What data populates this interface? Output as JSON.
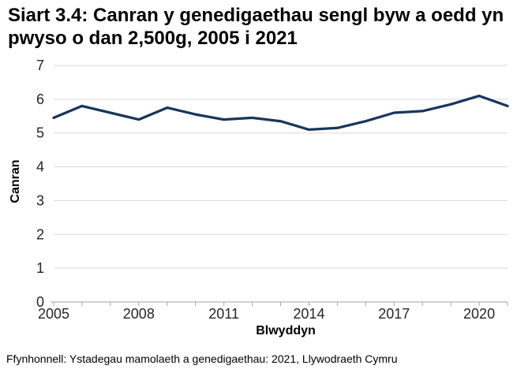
{
  "chart": {
    "title": "Siart 3.4: Canran y genedigaethau sengl byw a oedd yn pwyso o dan 2,500g, 2005 i 2021",
    "ylabel": "Canran",
    "xlabel": "Blwyddyn",
    "source": "Ffynhonnell: Ystadegau mamolaeth a genedigaethau: 2021, Llywodraeth Cymru"
  },
  "chart_data": {
    "type": "line",
    "title": "Siart 3.4: Canran y genedigaethau sengl byw a oedd yn pwyso o dan 2,500g, 2005 i 2021",
    "xlabel": "Blwyddyn",
    "ylabel": "Canran",
    "x": [
      2005,
      2006,
      2007,
      2008,
      2009,
      2010,
      2011,
      2012,
      2013,
      2014,
      2015,
      2016,
      2017,
      2018,
      2019,
      2020,
      2021
    ],
    "values": [
      5.45,
      5.8,
      5.6,
      5.4,
      5.75,
      5.55,
      5.4,
      5.45,
      5.35,
      5.1,
      5.15,
      5.35,
      5.6,
      5.65,
      5.85,
      6.1,
      5.8
    ],
    "ylim": [
      0,
      7
    ],
    "yticks": [
      0,
      1,
      2,
      3,
      4,
      5,
      6,
      7
    ],
    "xticks_labeled": [
      2005,
      2008,
      2011,
      2014,
      2017,
      2020
    ],
    "grid": "horizontal",
    "legend": "none",
    "colors": {
      "line": "#17365d",
      "gridline": "#d9d9d9",
      "axis": "#a6a6a6",
      "tick_label": "#262626"
    }
  }
}
